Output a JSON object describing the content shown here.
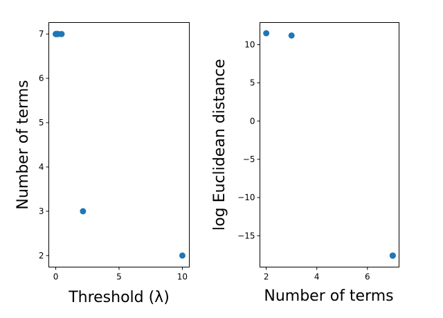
{
  "chart_data": [
    {
      "type": "scatter",
      "xlabel": "Threshold (λ)",
      "ylabel": "Number of terms",
      "xlim": [
        -0.55,
        10.55
      ],
      "ylim": [
        1.74,
        7.26
      ],
      "xticks": [
        0,
        5,
        10
      ],
      "yticks": [
        2,
        3,
        4,
        5,
        6,
        7
      ],
      "grid": false,
      "color": "#1f77b4",
      "points": [
        {
          "x": 0.0,
          "y": 7
        },
        {
          "x": 0.01,
          "y": 7
        },
        {
          "x": 0.02,
          "y": 7
        },
        {
          "x": 0.05,
          "y": 7
        },
        {
          "x": 0.1,
          "y": 7
        },
        {
          "x": 0.15,
          "y": 7
        },
        {
          "x": 0.2,
          "y": 7
        },
        {
          "x": 0.46,
          "y": 7
        },
        {
          "x": 2.15,
          "y": 3
        },
        {
          "x": 10.0,
          "y": 2
        }
      ]
    },
    {
      "type": "scatter",
      "xlabel": "Number of terms",
      "ylabel": "log Euclidean distance",
      "xlim": [
        1.75,
        7.25
      ],
      "ylim": [
        -19.1,
        12.9
      ],
      "xticks": [
        2,
        4,
        6
      ],
      "yticks": [
        10,
        5,
        0,
        -5,
        -10,
        -15
      ],
      "ytick_labels": [
        "10",
        "5",
        "0",
        "−5",
        "−10",
        "−15"
      ],
      "grid": false,
      "color": "#1f77b4",
      "points": [
        {
          "x": 2,
          "y": 11.5
        },
        {
          "x": 3,
          "y": 11.2
        },
        {
          "x": 7,
          "y": -17.6
        },
        {
          "x": 7,
          "y": -17.6
        },
        {
          "x": 7,
          "y": -17.6
        }
      ]
    }
  ]
}
